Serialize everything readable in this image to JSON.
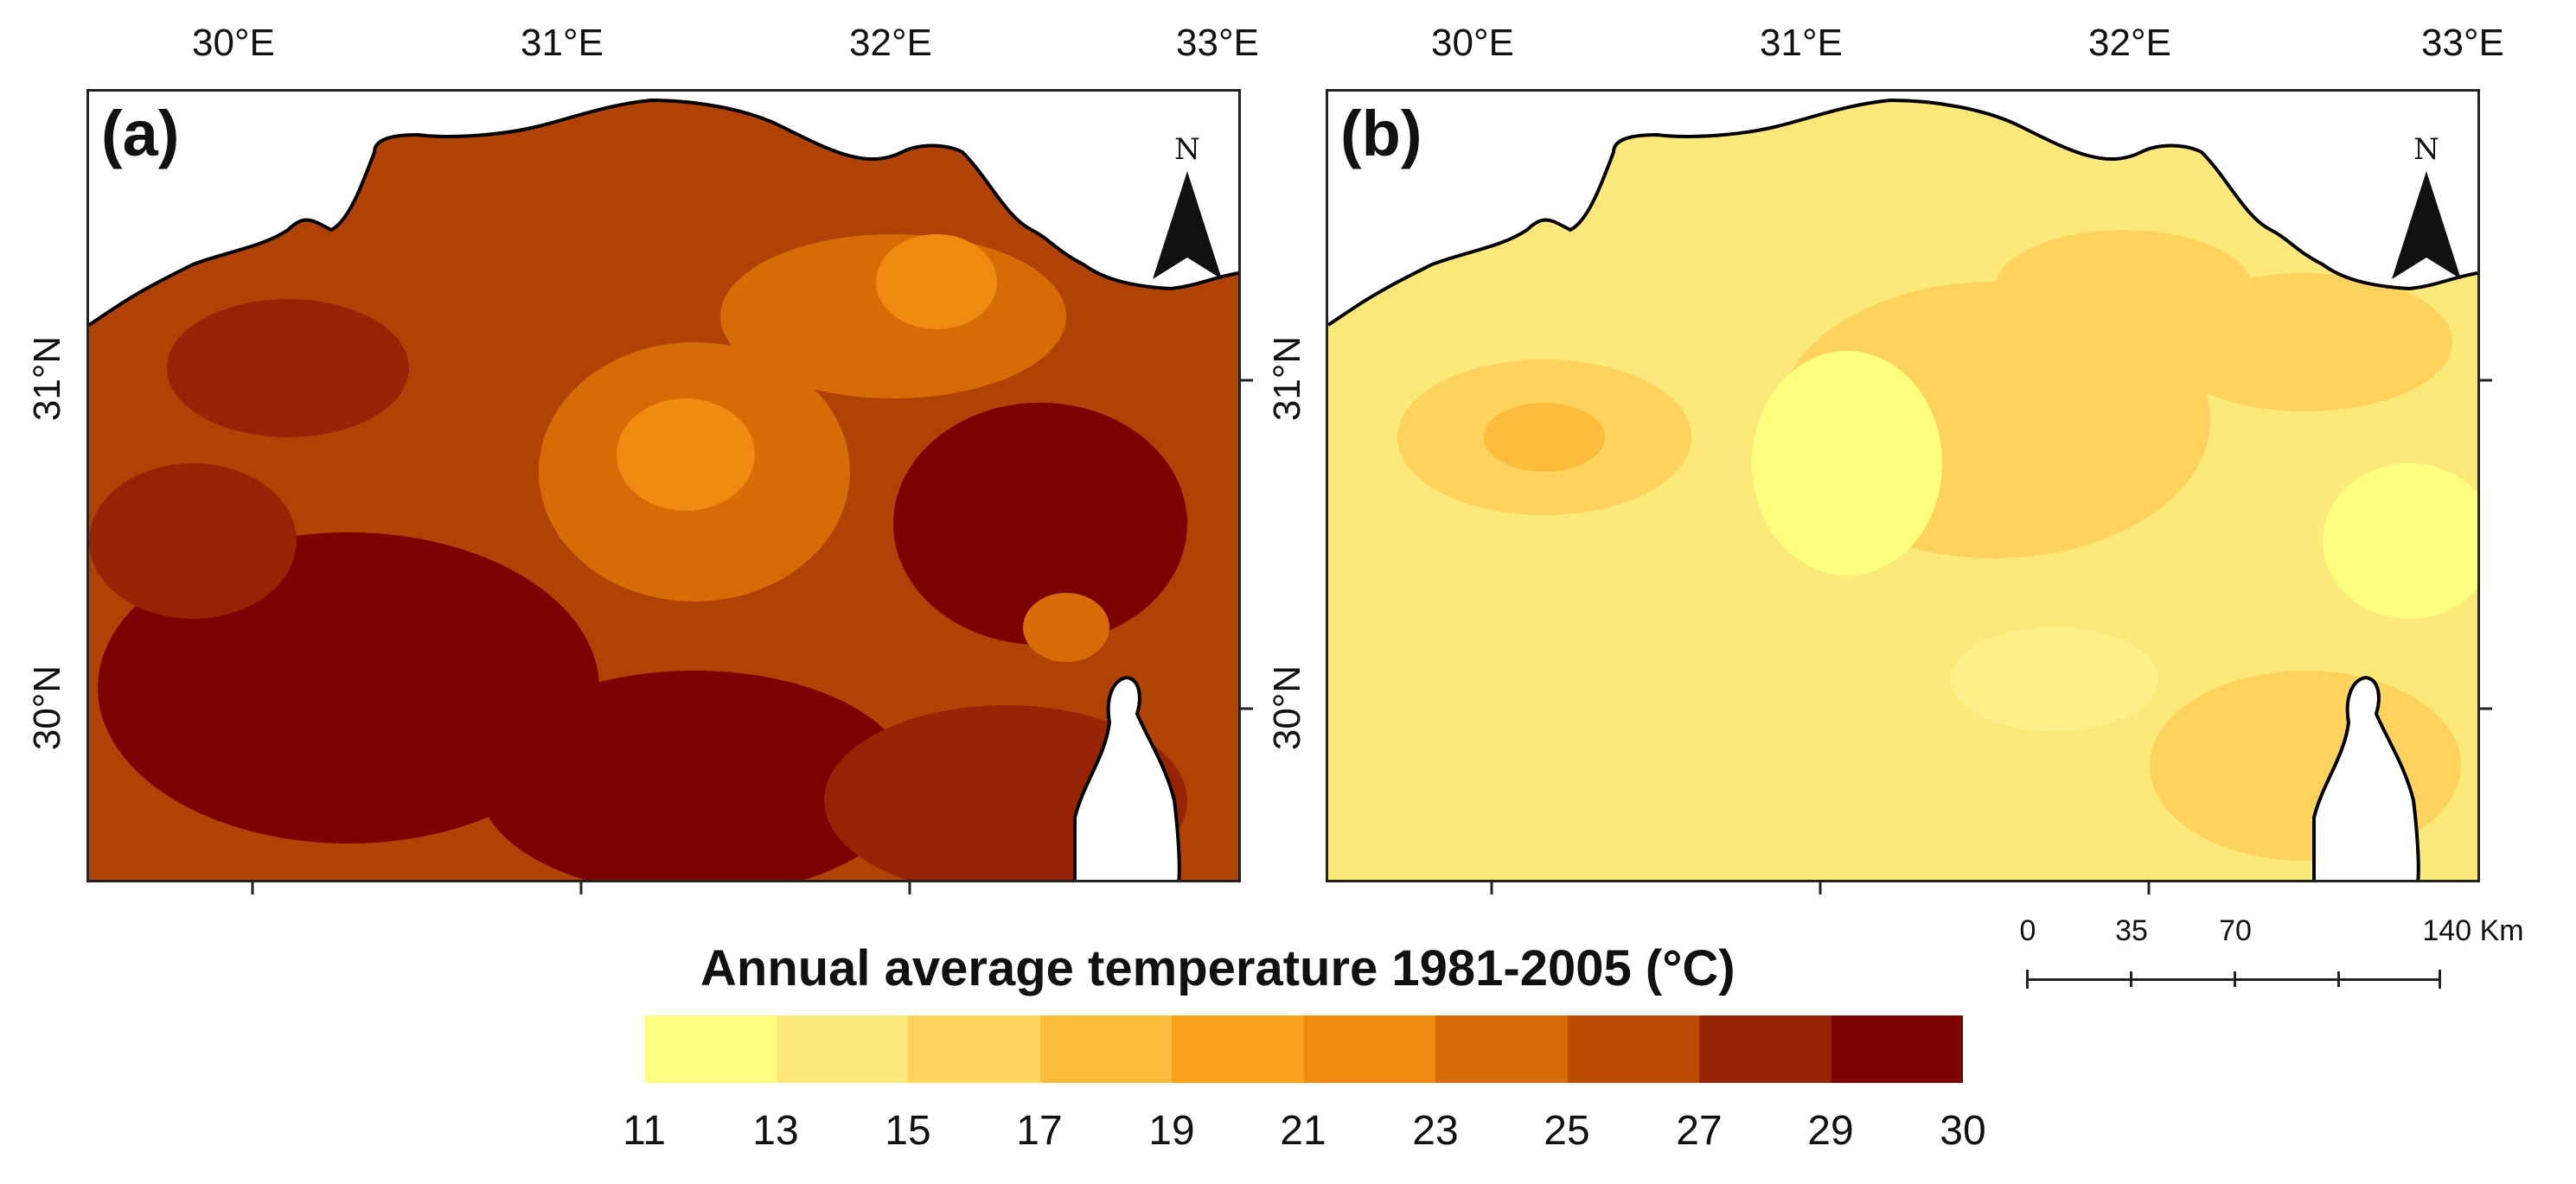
{
  "figure": {
    "lon_labels": [
      "30°E",
      "31°E",
      "32°E",
      "33°E"
    ],
    "lat_labels": [
      "31°N",
      "30°N"
    ],
    "panels": [
      {
        "id": "a",
        "letter": "(a)",
        "north": "N"
      },
      {
        "id": "b",
        "letter": "(b)",
        "north": "N"
      }
    ]
  },
  "legend": {
    "title": "Annual average temperature 1981-2005 (°C)",
    "ticks": [
      "11",
      "13",
      "15",
      "17",
      "19",
      "21",
      "23",
      "25",
      "27",
      "29",
      "30"
    ],
    "colors": [
      "#ffff80",
      "#fde87a",
      "#fdd35e",
      "#fcbd3c",
      "#f9a31d",
      "#f08a10",
      "#d96b07",
      "#bd4b05",
      "#962404",
      "#7c0202"
    ]
  },
  "scale_bar": {
    "labels": [
      "0",
      "35",
      "70",
      "140 Km"
    ]
  },
  "colors": {
    "frame": "#222222",
    "coast": "#000000",
    "sea": "#ffffff"
  }
}
